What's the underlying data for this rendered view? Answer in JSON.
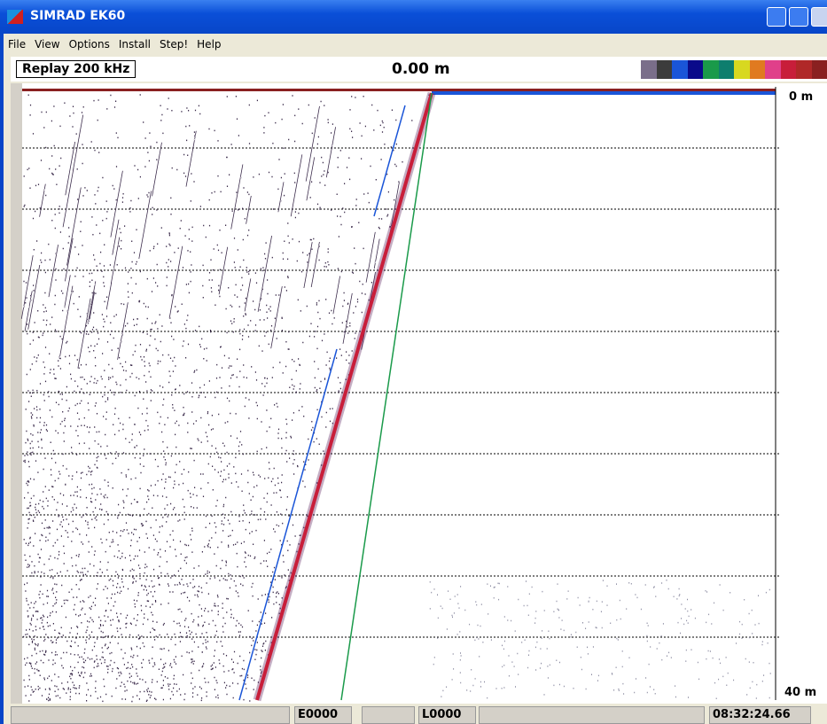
{
  "window": {
    "title": "SIMRAD EK60"
  },
  "menu": [
    "File",
    "View",
    "Options",
    "Install",
    "Step!",
    "Help"
  ],
  "info": {
    "mode": "Replay  200 kHz",
    "depth": "0.00 m",
    "palette": [
      "#7a6e8a",
      "#3c3c3c",
      "#1a55d8",
      "#0a0a8a",
      "#1a9a4a",
      "#0e7e6e",
      "#d8d820",
      "#e07a20",
      "#e0408a",
      "#c81e3a",
      "#b02828",
      "#8a2020"
    ]
  },
  "echogram": {
    "top_label": "0 m",
    "bottom_label": "40 m"
  },
  "status": {
    "event": "E0000",
    "log": "L0000",
    "time": "08:32:24.66"
  }
}
